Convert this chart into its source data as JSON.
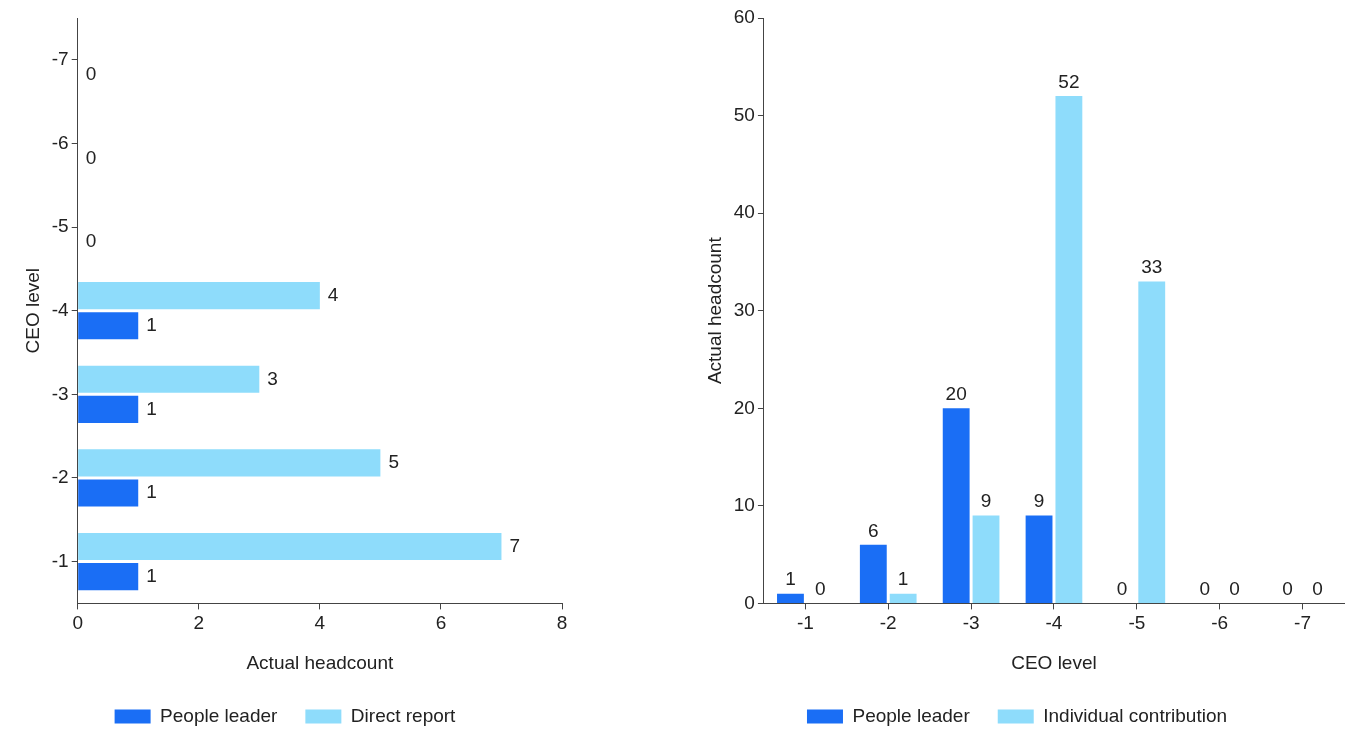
{
  "chart_data": [
    {
      "type": "bar",
      "orientation": "horizontal",
      "xlabel": "Actual headcount",
      "ylabel": "CEO level",
      "categories": [
        "-7",
        "-6",
        "-5",
        "-4",
        "-3",
        "-2",
        "-1"
      ],
      "series": [
        {
          "name": "Direct report",
          "color": "#8edcfb",
          "values": [
            0,
            0,
            0,
            4,
            3,
            5,
            7
          ],
          "value_labels": [
            null,
            null,
            null,
            "4",
            "3",
            "5",
            "7"
          ]
        },
        {
          "name": "People leader",
          "color": "#1a6ef5",
          "values": [
            0,
            0,
            0,
            1,
            1,
            1,
            1
          ],
          "value_labels": [
            "0",
            "0",
            "0",
            "1",
            "1",
            "1",
            "1"
          ]
        }
      ],
      "xlim": [
        0,
        8
      ],
      "xticks": [
        0,
        2,
        4,
        6,
        8
      ],
      "grid": false,
      "legend": "bottom"
    },
    {
      "type": "bar",
      "xlabel": "CEO level",
      "ylabel": "Actual headcount",
      "categories": [
        "-1",
        "-2",
        "-3",
        "-4",
        "-5",
        "-6",
        "-7"
      ],
      "series": [
        {
          "name": "People leader",
          "color": "#1a6ef5",
          "values": [
            1,
            6,
            20,
            9,
            0,
            0,
            0
          ]
        },
        {
          "name": "Individual contribution",
          "color": "#8edcfb",
          "values": [
            0,
            1,
            9,
            52,
            33,
            0,
            0
          ]
        }
      ],
      "ylim": [
        0,
        60
      ],
      "yticks": [
        0,
        10,
        20,
        30,
        40,
        50,
        60
      ],
      "grid": false,
      "legend": "bottom",
      "data_labels": true
    }
  ]
}
